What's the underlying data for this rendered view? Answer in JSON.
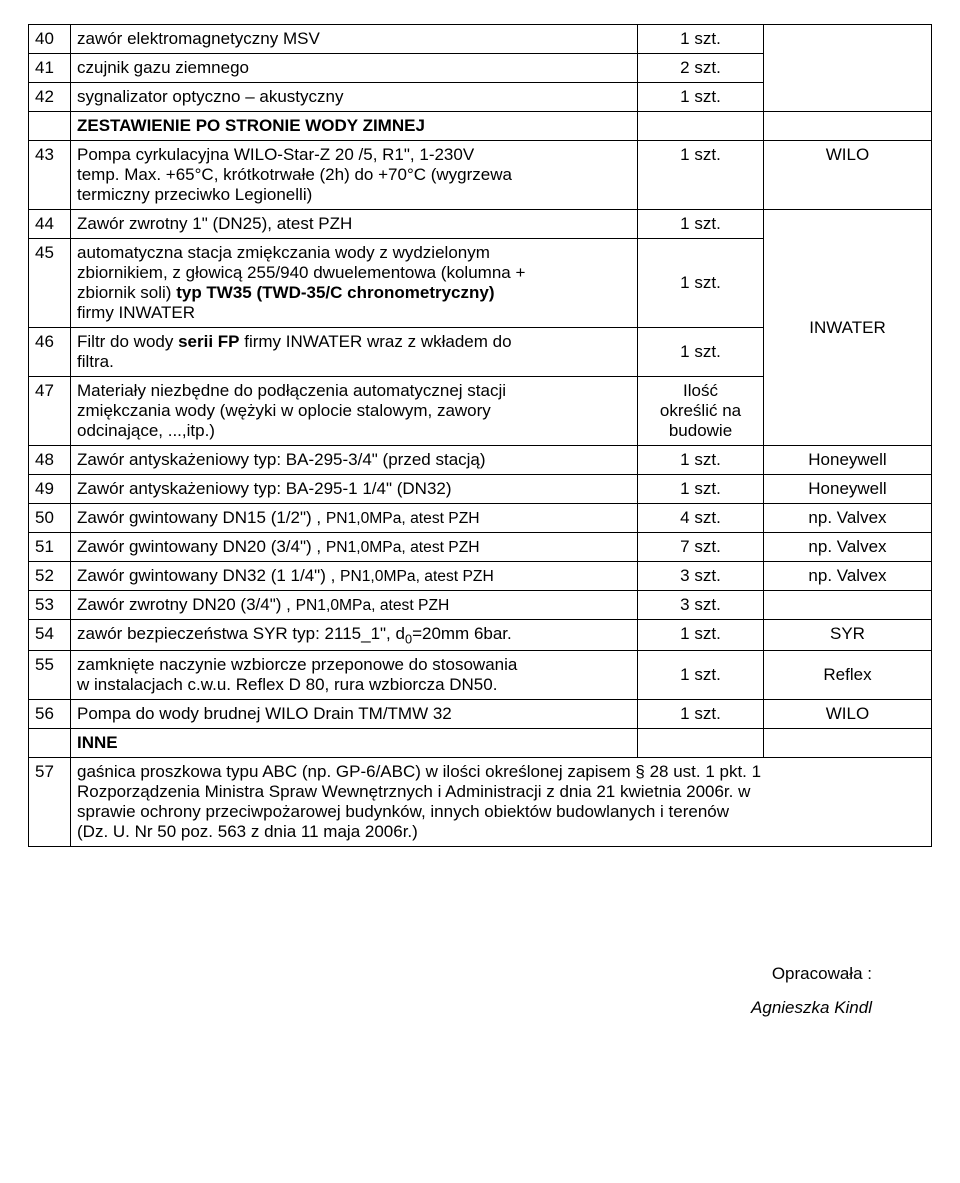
{
  "rows": {
    "r40": {
      "n": "40",
      "desc": "zawór elektromagnetyczny MSV",
      "qty": "1 szt.",
      "brand": ""
    },
    "r41": {
      "n": "41",
      "desc": "czujnik gazu ziemnego",
      "qty": "2 szt.",
      "brand": ""
    },
    "r42": {
      "n": "42",
      "desc": "sygnalizator optyczno – akustyczny",
      "qty": "1 szt.",
      "brand": ""
    },
    "rhdr1": {
      "desc": "ZESTAWIENIE PO STRONIE WODY ZIMNEJ"
    },
    "r43": {
      "n": "43",
      "d_a": "Pompa cyrkulacyjna WILO-Star-Z 20 /5, R1\", 1-230V",
      "d_b": "temp. Max. +65°C, krótkotrwałe (2h) do +70°C (wygrzewa",
      "d_c": "termiczny przeciwko Legionelli)",
      "qty": "1 szt.",
      "brand": "WILO"
    },
    "r44": {
      "n": "44",
      "desc": "Zawór zwrotny 1\" (DN25), atest PZH",
      "qty": "1 szt."
    },
    "r45": {
      "n": "45",
      "d_a": "automatyczna stacja zmiękczania wody z wydzielonym",
      "d_b": "zbiornikiem, z głowicą 255/940 dwuelementowa (kolumna +",
      "d_c_1": "zbiornik soli) ",
      "d_c_2": "typ TW35 (TWD-35/C chronometryczny)",
      "d_d": "firmy INWATER",
      "qty": "1 szt.",
      "brand": "INWATER"
    },
    "r46": {
      "n": "46",
      "d_a_1": "Filtr do wody ",
      "d_a_2": "serii FP",
      "d_a_3": " firmy INWATER wraz z wkładem do",
      "d_b": "filtra.",
      "qty": "1 szt."
    },
    "r47": {
      "n": "47",
      "d_a": "Materiały niezbędne do podłączenia automatycznej stacji",
      "d_b": "zmiękczania wody (wężyki w oplocie stalowym, zawory",
      "d_c": "odcinające, ...,itp.)",
      "q_a": "Ilość",
      "q_b": "określić na",
      "q_c": "budowie"
    },
    "r48": {
      "n": "48",
      "desc": "Zawór antyskażeniowy typ: BA-295-3/4\" (przed stacją)",
      "qty": "1 szt.",
      "brand": "Honeywell"
    },
    "r49": {
      "n": "49",
      "desc": "Zawór antyskażeniowy typ: BA-295-1 1/4\" (DN32)",
      "qty": "1 szt.",
      "brand": "Honeywell"
    },
    "r50": {
      "n": "50",
      "d_a": "Zawór gwintowany DN15 (1/2\") , ",
      "d_b": "PN1,0MPa, atest PZH",
      "qty": "4 szt.",
      "brand": "np. Valvex"
    },
    "r51": {
      "n": "51",
      "d_a": "Zawór gwintowany DN20 (3/4\") , ",
      "d_b": "PN1,0MPa, atest PZH",
      "qty": "7 szt.",
      "brand": "np. Valvex"
    },
    "r52": {
      "n": "52",
      "d_a": "Zawór gwintowany DN32 (1 1/4\") , ",
      "d_b": "PN1,0MPa, atest PZH",
      "qty": "3 szt.",
      "brand": "np. Valvex"
    },
    "r53": {
      "n": "53",
      "d_a": "Zawór zwrotny DN20 (3/4\") , ",
      "d_b": "PN1,0MPa, atest PZH",
      "qty": "3 szt.",
      "brand": ""
    },
    "r54": {
      "n": "54",
      "d_a": "zawór bezpieczeństwa SYR typ: 2115_1\", d",
      "d_b": "0",
      "d_c": "=20mm 6bar.",
      "qty": "1 szt.",
      "brand": "SYR"
    },
    "r55": {
      "n": "55",
      "d_a": "zamknięte naczynie wzbiorcze przeponowe do stosowania",
      "d_b": "w instalacjach c.w.u. Reflex D 80, rura wzbiorcza  DN50.",
      "qty": "1 szt.",
      "brand": "Reflex"
    },
    "r56": {
      "n": "56",
      "desc": "Pompa do wody brudnej WILO Drain TM/TMW 32",
      "qty": "1 szt.",
      "brand": "WILO"
    },
    "rhdr2": {
      "desc": "INNE"
    },
    "r57": {
      "n": "57",
      "d_a": "gaśnica proszkowa typu ABC (np. GP-6/ABC) w ilości określonej zapisem § 28 ust. 1 pkt. 1",
      "d_b": "Rozporządzenia Ministra Spraw Wewnętrznych i Administracji z dnia 21 kwietnia 2006r. w",
      "d_c": "sprawie ochrony przeciwpożarowej budynków, innych obiektów budowlanych i terenów",
      "d_d": "(Dz. U. Nr 50 poz. 563 z dnia 11 maja 2006r.)"
    }
  },
  "footer": {
    "label": "Opracowała :",
    "name": "Agnieszka Kindl"
  }
}
